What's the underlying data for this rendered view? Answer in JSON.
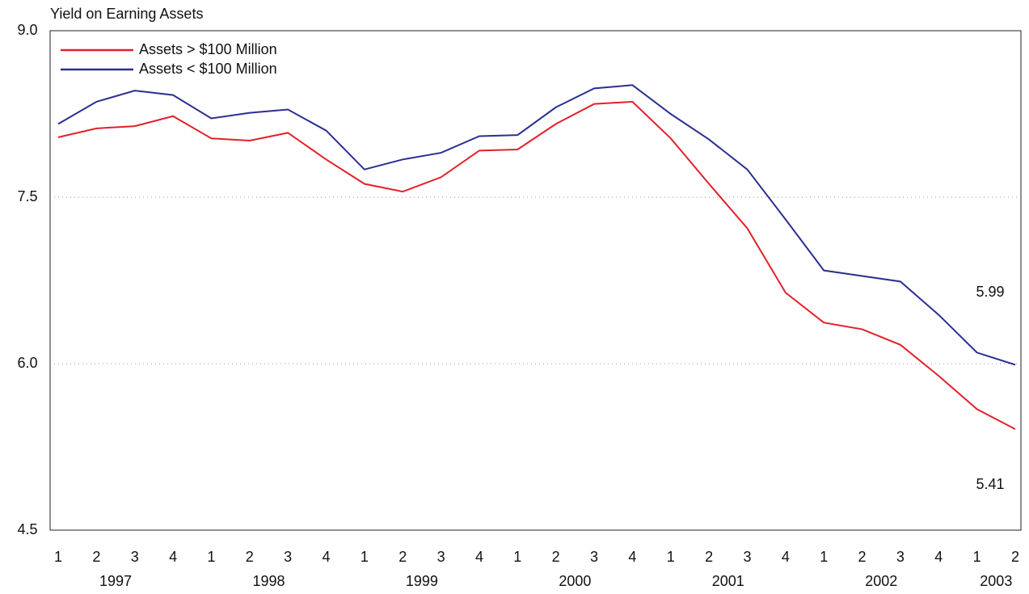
{
  "chart_data": {
    "type": "line",
    "y_label": "Yield on Earning Assets",
    "categories": [
      "1",
      "2",
      "3",
      "4",
      "1",
      "2",
      "3",
      "4",
      "1",
      "2",
      "3",
      "4",
      "1",
      "2",
      "3",
      "4",
      "1",
      "2",
      "3",
      "4",
      "1",
      "2",
      "3",
      "4",
      "1",
      "2"
    ],
    "years": [
      "1997",
      "1998",
      "1999",
      "2000",
      "2001",
      "2002",
      "2003"
    ],
    "series": [
      {
        "name": "Assets > $100 Million",
        "color": "#e3202a",
        "values": [
          8.04,
          8.12,
          8.14,
          8.23,
          8.03,
          8.01,
          8.08,
          7.84,
          7.62,
          7.55,
          7.68,
          7.92,
          7.93,
          8.16,
          8.34,
          8.36,
          8.03,
          7.62,
          7.22,
          6.64,
          6.37,
          6.31,
          6.17,
          5.89,
          5.59,
          5.41
        ]
      },
      {
        "name": "Assets < $100 Million",
        "color": "#2b2f8f",
        "values": [
          8.16,
          8.36,
          8.46,
          8.42,
          8.21,
          8.26,
          8.29,
          8.1,
          7.75,
          7.84,
          7.9,
          8.05,
          8.06,
          8.31,
          8.48,
          8.51,
          8.25,
          8.02,
          7.75,
          7.3,
          6.84,
          6.79,
          6.74,
          6.44,
          6.1,
          5.99
        ]
      }
    ],
    "ylim": [
      4.5,
      9
    ],
    "yticks": [
      {
        "value": 9,
        "label": "9.0"
      },
      7.5,
      {
        "value": 6,
        "label": "6.0"
      },
      4.5
    ],
    "grid": true,
    "legend": "upper left"
  }
}
